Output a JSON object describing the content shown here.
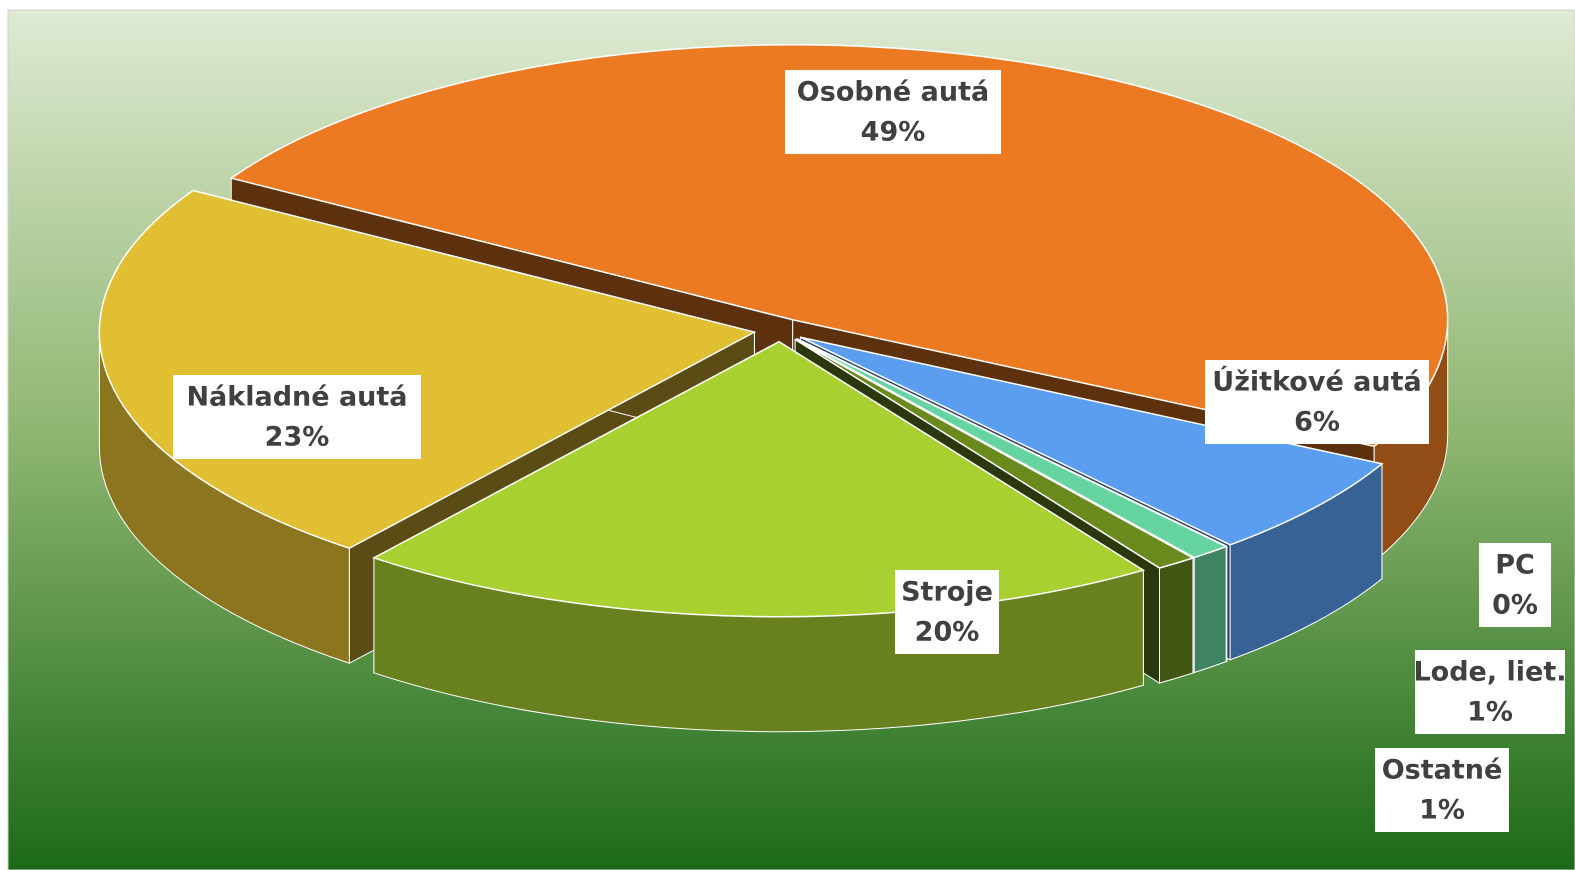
{
  "chart_data": {
    "type": "pie3d",
    "categories": [
      "Osobné autá",
      "Úžitkové autá",
      "PC",
      "Lode, liet.",
      "Ostatné",
      "Stroje",
      "Nákladné autá"
    ],
    "values": [
      49,
      6,
      0,
      1,
      1,
      20,
      23
    ],
    "value_labels": [
      "49%",
      "6%",
      "0%",
      "1%",
      "1%",
      "20%",
      "23%"
    ],
    "colors": [
      "#ec7a23",
      "#5b9ef0",
      "#9dd6f0",
      "#66d4a0",
      "#6b8a1e",
      "#a8d030",
      "#e0bf32"
    ]
  }
}
